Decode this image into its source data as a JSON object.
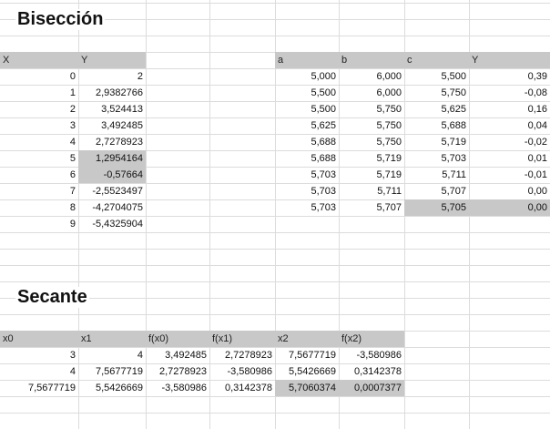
{
  "titles": {
    "biseccion": "Bisección",
    "secante": "Secante"
  },
  "table1": {
    "headers": [
      "X",
      "Y"
    ],
    "rows": [
      [
        "0",
        "2"
      ],
      [
        "1",
        "2,9382766"
      ],
      [
        "2",
        "3,524413"
      ],
      [
        "3",
        "3,492485"
      ],
      [
        "4",
        "2,7278923"
      ],
      [
        "5",
        "1,2954164"
      ],
      [
        "6",
        "-0,57664"
      ],
      [
        "7",
        "-2,5523497"
      ],
      [
        "8",
        "-4,2704075"
      ],
      [
        "9",
        "-5,4325904"
      ]
    ]
  },
  "table2": {
    "headers": [
      "a",
      "b",
      "c",
      "Y"
    ],
    "rows": [
      [
        "5,000",
        "6,000",
        "5,500",
        "0,39"
      ],
      [
        "5,500",
        "6,000",
        "5,750",
        "-0,08"
      ],
      [
        "5,500",
        "5,750",
        "5,625",
        "0,16"
      ],
      [
        "5,625",
        "5,750",
        "5,688",
        "0,04"
      ],
      [
        "5,688",
        "5,750",
        "5,719",
        "-0,02"
      ],
      [
        "5,688",
        "5,719",
        "5,703",
        "0,01"
      ],
      [
        "5,703",
        "5,719",
        "5,711",
        "-0,01"
      ],
      [
        "5,703",
        "5,711",
        "5,707",
        "0,00"
      ],
      [
        "5,703",
        "5,707",
        "5,705",
        "0,00"
      ]
    ]
  },
  "table3": {
    "headers": [
      "x0",
      "x1",
      "f(x0)",
      "f(x1)",
      "x2",
      "f(x2)"
    ],
    "rows": [
      [
        "3",
        "4",
        "3,492485",
        "2,7278923",
        "7,5677719",
        "-3,580986"
      ],
      [
        "4",
        "7,5677719",
        "2,7278923",
        "-3,580986",
        "5,5426669",
        "0,3142378"
      ],
      [
        "7,5677719",
        "5,5426669",
        "-3,580986",
        "0,3142378",
        "5,7060374",
        "0,0007377"
      ]
    ]
  },
  "colors": {
    "header_bg": "#c8c8c8",
    "grid": "#dcdcdc"
  }
}
